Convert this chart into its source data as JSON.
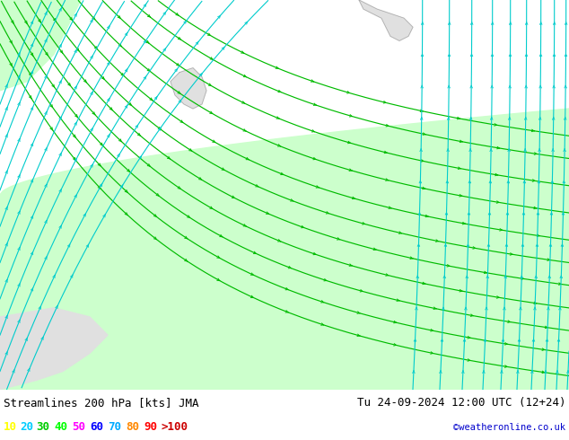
{
  "title_left": "Streamlines 200 hPa [kts] JMA",
  "title_right": "Tu 24-09-2024 12:00 UTC (12+24)",
  "credit": "©weatheronline.co.uk",
  "legend_values": [
    "10",
    "20",
    "30",
    "40",
    "50",
    "60",
    "70",
    "80",
    "90",
    ">100"
  ],
  "legend_colors": [
    "#ffff00",
    "#00ccff",
    "#00cc00",
    "#00ff00",
    "#ff00ff",
    "#0000ff",
    "#00aaff",
    "#ff8800",
    "#ff0000",
    "#cc0000"
  ],
  "map_bg": "#e8e8e8",
  "green_fill": "#ccffcc",
  "green_line": "#00bb00",
  "cyan_line": "#00cccc",
  "blue_line": "#4488ff",
  "fig_width": 6.34,
  "fig_height": 4.9,
  "bottom_bar_color": "#ffffff",
  "title_fontsize": 9,
  "legend_fontsize": 9
}
